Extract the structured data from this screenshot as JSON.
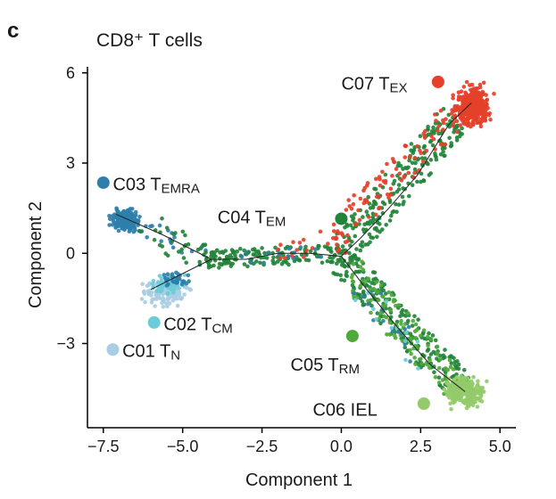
{
  "panel_label": "c",
  "chart_data": {
    "type": "scatter",
    "title": "CD8⁺ T cells",
    "xlabel": "Component 1",
    "ylabel": "Component 2",
    "xlim": [
      -8.0,
      5.5
    ],
    "ylim": [
      -5.8,
      6.2
    ],
    "xticks": [
      -7.5,
      -5.0,
      -2.5,
      0.0,
      2.5,
      5.0
    ],
    "xtick_labels": [
      "−7.5",
      "−5.0",
      "−2.5",
      "0.0",
      "2.5",
      "5.0"
    ],
    "yticks": [
      -3,
      0,
      3,
      6
    ],
    "ytick_labels": [
      "−3",
      "0",
      "3",
      "6"
    ],
    "grid": false,
    "trajectory": [
      [
        [
          -7.1,
          1.3
        ],
        [
          -5.6,
          0.6
        ],
        [
          -4.1,
          -0.2
        ],
        [
          -3.0,
          -0.2
        ],
        [
          -2.0,
          0.0
        ],
        [
          -1.0,
          0.0
        ],
        [
          0.0,
          -0.1
        ]
      ],
      [
        [
          -6.0,
          -1.2
        ],
        [
          -4.1,
          -0.2
        ]
      ],
      [
        [
          0.0,
          -0.1
        ],
        [
          0.6,
          0.5
        ],
        [
          1.5,
          1.5
        ],
        [
          2.4,
          2.6
        ],
        [
          3.4,
          4.3
        ],
        [
          4.1,
          5.0
        ]
      ],
      [
        [
          0.0,
          -0.1
        ],
        [
          0.8,
          -1.2
        ],
        [
          1.8,
          -2.5
        ],
        [
          2.8,
          -3.7
        ],
        [
          3.9,
          -4.6
        ]
      ]
    ],
    "clusters": [
      {
        "name": "C01",
        "sub": "N",
        "color": "#a9cde3",
        "legend_marker": [
          -7.2,
          -3.2
        ],
        "legend_text": [
          -6.9,
          -3.45
        ]
      },
      {
        "name": "C02",
        "sub": "CM",
        "color": "#6bcbd8",
        "legend_marker": [
          -5.9,
          -2.3
        ],
        "legend_text": [
          -5.6,
          -2.55
        ]
      },
      {
        "name": "C03",
        "sub": "EMRA",
        "color": "#2e7fab",
        "legend_marker": [
          -7.5,
          2.35
        ],
        "legend_text": [
          -7.2,
          2.1
        ]
      },
      {
        "name": "C04",
        "sub": "EM",
        "color": "#22843a",
        "legend_marker": [
          0.0,
          1.15
        ],
        "legend_text": [
          -3.9,
          1.0
        ]
      },
      {
        "name": "C05",
        "sub": "RM",
        "color": "#4ea93b",
        "legend_marker": [
          0.35,
          -2.75
        ],
        "legend_text": [
          -1.6,
          -3.9
        ]
      },
      {
        "name": "C06",
        "sub": "",
        "label": "C06 IEL",
        "color": "#94cb6a",
        "legend_marker": [
          2.6,
          -5.0
        ],
        "legend_text": [
          -0.9,
          -5.4
        ]
      },
      {
        "name": "C07",
        "sub": "EX",
        "color": "#e4402a",
        "legend_marker": [
          3.05,
          5.7
        ],
        "legend_text": [
          0.0,
          5.45
        ]
      }
    ],
    "point_groups": [
      {
        "cluster": "C03",
        "shape": "blob",
        "center": [
          -6.8,
          1.1
        ],
        "spread": [
          0.28,
          0.22
        ],
        "n": 220
      },
      {
        "cluster": "C03",
        "shape": "path",
        "from": [
          -6.8,
          1.1
        ],
        "to": [
          -4.3,
          -0.1
        ],
        "width": 0.35,
        "n": 25
      },
      {
        "cluster": "C01",
        "shape": "blob",
        "center": [
          -5.6,
          -1.35
        ],
        "spread": [
          0.5,
          0.28
        ],
        "n": 120
      },
      {
        "cluster": "C02",
        "shape": "blob",
        "center": [
          -5.5,
          -1.0
        ],
        "spread": [
          0.35,
          0.25
        ],
        "n": 70
      },
      {
        "cluster": "C03",
        "shape": "blob",
        "center": [
          -5.2,
          -0.9
        ],
        "spread": [
          0.25,
          0.15
        ],
        "n": 30
      },
      {
        "cluster": "C04",
        "shape": "path",
        "from": [
          -6.4,
          1.0
        ],
        "to": [
          -4.3,
          -0.1
        ],
        "width": 0.55,
        "n": 30
      },
      {
        "cluster": "C04",
        "shape": "path",
        "from": [
          -4.3,
          -0.2
        ],
        "to": [
          0.0,
          0.0
        ],
        "width": 0.3,
        "n": 150
      },
      {
        "cluster": "C04",
        "shape": "path",
        "from": [
          0.0,
          0.0
        ],
        "to": [
          3.6,
          4.5
        ],
        "width": 0.55,
        "n": 230
      },
      {
        "cluster": "C07",
        "shape": "path",
        "from": [
          -0.5,
          0.3
        ],
        "to": [
          3.9,
          4.9
        ],
        "width": 0.5,
        "n": 110
      },
      {
        "cluster": "C07",
        "shape": "blob",
        "center": [
          4.15,
          4.9
        ],
        "spread": [
          0.35,
          0.42
        ],
        "n": 360
      },
      {
        "cluster": "C04",
        "shape": "path",
        "from": [
          0.0,
          -0.2
        ],
        "to": [
          3.8,
          -4.5
        ],
        "width": 0.5,
        "n": 230
      },
      {
        "cluster": "C05",
        "shape": "path",
        "from": [
          0.2,
          -0.5
        ],
        "to": [
          3.6,
          -4.5
        ],
        "width": 0.5,
        "n": 110
      },
      {
        "cluster": "C06",
        "shape": "blob",
        "center": [
          3.9,
          -4.6
        ],
        "spread": [
          0.42,
          0.32
        ],
        "n": 240
      },
      {
        "cluster": "C03",
        "shape": "path",
        "from": [
          0.5,
          -1.0
        ],
        "to": [
          2.5,
          -3.5
        ],
        "width": 0.4,
        "n": 15
      },
      {
        "cluster": "C02",
        "shape": "path",
        "from": [
          0.6,
          -1.2
        ],
        "to": [
          2.6,
          -3.8
        ],
        "width": 0.4,
        "n": 12
      },
      {
        "cluster": "C03",
        "shape": "path",
        "from": [
          -3.5,
          -0.1
        ],
        "to": [
          -0.5,
          0.0
        ],
        "width": 0.25,
        "n": 15
      },
      {
        "cluster": "C07",
        "shape": "path",
        "from": [
          -2.0,
          0.1
        ],
        "to": [
          0.3,
          0.3
        ],
        "width": 0.3,
        "n": 15
      }
    ]
  }
}
